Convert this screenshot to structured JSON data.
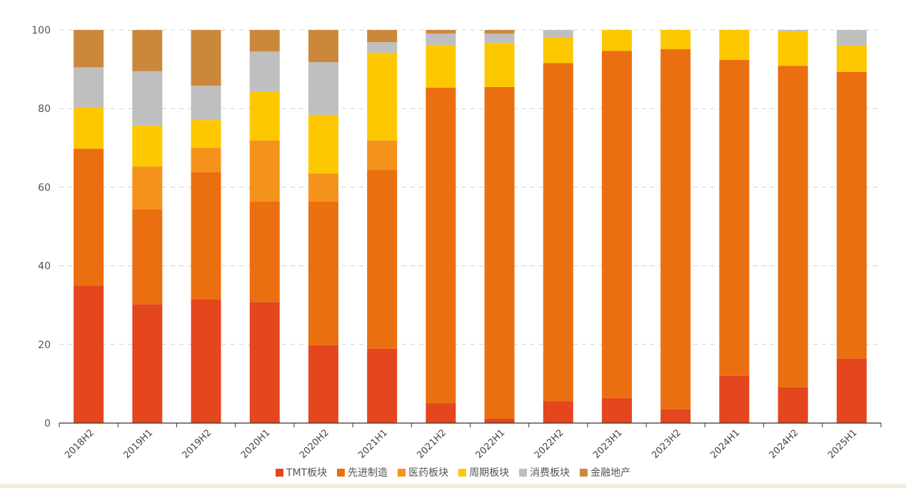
{
  "chart_data": {
    "type": "bar",
    "stacked": true,
    "title": "",
    "xlabel": "",
    "ylabel": "",
    "ylim": [
      0,
      100
    ],
    "yticks": [
      0,
      20,
      40,
      60,
      80,
      100
    ],
    "grid": true,
    "legend_position": "bottom",
    "categories": [
      "2018H2",
      "2019H1",
      "2019H2",
      "2020H1",
      "2020H2",
      "2021H1",
      "2021H2",
      "2022H1",
      "2022H2",
      "2023H1",
      "2023H2",
      "2024H1",
      "2024H2",
      "2025H1"
    ],
    "series": [
      {
        "name": "TMT板块",
        "color": "#e4461d",
        "values": [
          35.0,
          30.2,
          31.4,
          30.8,
          19.8,
          18.9,
          5.1,
          1.1,
          5.6,
          6.4,
          3.5,
          12.0,
          9.1,
          16.4
        ]
      },
      {
        "name": "先进制造",
        "color": "#ea6f10",
        "values": [
          34.8,
          24.2,
          32.4,
          25.6,
          36.6,
          45.5,
          80.2,
          84.4,
          86.0,
          88.3,
          91.6,
          80.4,
          81.8,
          72.9
        ]
      },
      {
        "name": "医药板块",
        "color": "#f5921c",
        "values": [
          0,
          10.9,
          6.2,
          15.5,
          7.1,
          7.5,
          0,
          0,
          0,
          0,
          0,
          0,
          0,
          0
        ]
      },
      {
        "name": "周期板块",
        "color": "#fec800",
        "values": [
          10.6,
          10.3,
          7.1,
          12.5,
          14.9,
          22.3,
          10.9,
          11.2,
          6.4,
          5.3,
          4.9,
          7.6,
          8.7,
          6.7
        ]
      },
      {
        "name": "消费板块",
        "color": "#bfbfbf",
        "values": [
          10.1,
          13.9,
          8.7,
          10.1,
          13.4,
          2.7,
          2.9,
          2.4,
          2.0,
          0,
          0,
          0,
          0.4,
          4.0
        ]
      },
      {
        "name": "金融地产",
        "color": "#cc883a",
        "values": [
          9.5,
          10.5,
          14.2,
          5.5,
          8.2,
          3.1,
          0.9,
          0.9,
          0,
          0,
          0,
          0,
          0,
          0
        ]
      }
    ]
  }
}
